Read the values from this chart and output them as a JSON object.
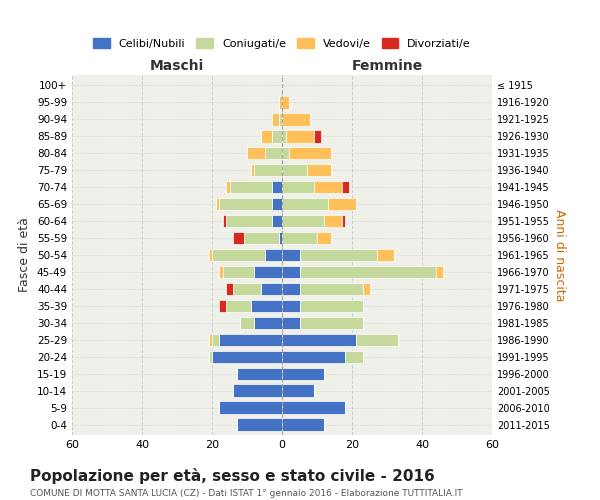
{
  "age_groups": [
    "100+",
    "95-99",
    "90-94",
    "85-89",
    "80-84",
    "75-79",
    "70-74",
    "65-69",
    "60-64",
    "55-59",
    "50-54",
    "45-49",
    "40-44",
    "35-39",
    "30-34",
    "25-29",
    "20-24",
    "15-19",
    "10-14",
    "5-9",
    "0-4"
  ],
  "birth_years": [
    "≤ 1915",
    "1916-1920",
    "1921-1925",
    "1926-1930",
    "1931-1935",
    "1936-1940",
    "1941-1945",
    "1946-1950",
    "1951-1955",
    "1956-1960",
    "1961-1965",
    "1966-1970",
    "1971-1975",
    "1976-1980",
    "1981-1985",
    "1986-1990",
    "1991-1995",
    "1996-2000",
    "2001-2005",
    "2006-2010",
    "2011-2015"
  ],
  "maschi": {
    "celibi": [
      0,
      0,
      0,
      0,
      0,
      0,
      3,
      3,
      3,
      1,
      5,
      8,
      6,
      9,
      8,
      18,
      20,
      13,
      14,
      18,
      13
    ],
    "coniugati": [
      0,
      0,
      1,
      3,
      5,
      8,
      12,
      15,
      13,
      10,
      15,
      9,
      8,
      7,
      4,
      2,
      1,
      0,
      0,
      0,
      0
    ],
    "vedovi": [
      0,
      1,
      2,
      3,
      5,
      1,
      1,
      1,
      0,
      0,
      1,
      1,
      0,
      0,
      0,
      1,
      0,
      0,
      0,
      0,
      0
    ],
    "divorziati": [
      0,
      0,
      0,
      0,
      0,
      0,
      0,
      0,
      1,
      3,
      0,
      0,
      2,
      2,
      0,
      0,
      0,
      0,
      0,
      0,
      0
    ]
  },
  "femmine": {
    "nubili": [
      0,
      0,
      0,
      0,
      0,
      0,
      0,
      0,
      0,
      0,
      5,
      5,
      5,
      5,
      5,
      21,
      18,
      12,
      9,
      18,
      12
    ],
    "coniugate": [
      0,
      0,
      0,
      1,
      2,
      7,
      9,
      13,
      12,
      10,
      22,
      39,
      18,
      18,
      18,
      12,
      5,
      0,
      0,
      0,
      0
    ],
    "vedove": [
      0,
      2,
      8,
      8,
      12,
      7,
      8,
      8,
      5,
      4,
      5,
      2,
      2,
      0,
      0,
      0,
      0,
      0,
      0,
      0,
      0
    ],
    "divorziate": [
      0,
      0,
      0,
      2,
      0,
      0,
      2,
      0,
      1,
      0,
      0,
      0,
      0,
      0,
      0,
      0,
      0,
      0,
      0,
      0,
      0
    ]
  },
  "colors": {
    "celibi": "#4472c4",
    "coniugati": "#c5d99d",
    "vedovi": "#ffc05a",
    "divorziati": "#d9291c"
  },
  "title": "Popolazione per età, sesso e stato civile - 2016",
  "subtitle": "COMUNE DI MOTTA SANTA LUCIA (CZ) - Dati ISTAT 1° gennaio 2016 - Elaborazione TUTTITALIA.IT",
  "xlabel_left": "Maschi",
  "xlabel_right": "Femmine",
  "ylabel_left": "Fasce di età",
  "ylabel_right": "Anni di nascita",
  "legend_labels": [
    "Celibi/Nubili",
    "Coniugati/e",
    "Vedovi/e",
    "Divorziati/e"
  ],
  "xlim": 60,
  "background_color": "#ffffff",
  "plot_bg_color": "#f0f0eb",
  "grid_color": "#cccccc"
}
